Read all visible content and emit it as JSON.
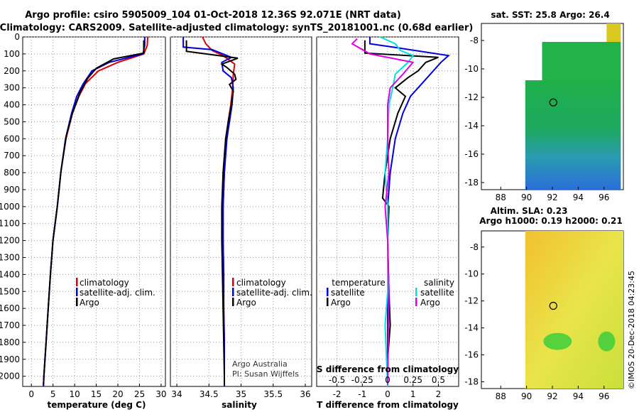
{
  "header": {
    "line1": "Argo profile: csiro 5905009_104 01-Oct-2018 12.36S 92.071E (NRT data)",
    "line2": "Climatology: CARS2009. Satellite-adjusted climatology: synTS_20181001.nc (0.68d earlier)"
  },
  "colors": {
    "climatology": "#e00000",
    "satellite": "#0000e0",
    "argo": "#000000",
    "sat_salinity": "#00e0e0",
    "clim_salinity": "#e000e0"
  },
  "chart_data": [
    {
      "type": "line",
      "xlabel": "temperature (deg C)",
      "ylabel": "",
      "xlim": [
        -2,
        31
      ],
      "ylim": [
        2060,
        0
      ],
      "xticks": [
        0,
        5,
        10,
        15,
        20,
        25,
        30
      ],
      "yticks": [
        0,
        100,
        200,
        300,
        400,
        500,
        600,
        700,
        800,
        900,
        1000,
        1100,
        1200,
        1300,
        1400,
        1500,
        1600,
        1700,
        1800,
        1900,
        2000
      ],
      "legend": {
        "items": [
          "climatology",
          "satellite-adj. clim.",
          "Argo"
        ],
        "placement": "bottom-center"
      },
      "series": [
        {
          "name": "climatology",
          "color": "#e00000",
          "points": [
            [
              26.9,
              0
            ],
            [
              26.8,
              50
            ],
            [
              26.0,
              100
            ],
            [
              20.0,
              150
            ],
            [
              15.5,
              200
            ],
            [
              12.5,
              275
            ],
            [
              11.0,
              350
            ],
            [
              9.5,
              450
            ],
            [
              8.0,
              600
            ],
            [
              6.8,
              800
            ],
            [
              6.0,
              1000
            ],
            [
              5.0,
              1200
            ],
            [
              4.4,
              1400
            ],
            [
              3.9,
              1600
            ],
            [
              3.4,
              1800
            ],
            [
              2.9,
              2000
            ],
            [
              2.8,
              2060
            ]
          ]
        },
        {
          "name": "satellite-adj. clim.",
          "color": "#0000e0",
          "points": [
            [
              26.2,
              0
            ],
            [
              26.2,
              50
            ],
            [
              25.8,
              100
            ],
            [
              18.0,
              150
            ],
            [
              14.0,
              200
            ],
            [
              12.0,
              275
            ],
            [
              10.5,
              350
            ],
            [
              9.3,
              450
            ],
            [
              7.9,
              600
            ],
            [
              6.8,
              800
            ],
            [
              6.0,
              1000
            ],
            [
              5.0,
              1200
            ],
            [
              4.4,
              1400
            ],
            [
              3.9,
              1600
            ],
            [
              3.4,
              1800
            ],
            [
              2.9,
              2000
            ],
            [
              2.8,
              2060
            ]
          ]
        },
        {
          "name": "Argo",
          "color": "#000000",
          "points": [
            [
              26.0,
              20
            ],
            [
              26.0,
              95
            ],
            [
              19.0,
              130
            ],
            [
              15.0,
              185
            ],
            [
              13.0,
              245
            ],
            [
              11.2,
              330
            ],
            [
              10.2,
              400
            ],
            [
              9.5,
              450
            ],
            [
              8.1,
              580
            ],
            [
              6.9,
              780
            ],
            [
              6.0,
              1000
            ],
            [
              5.0,
              1200
            ],
            [
              4.4,
              1400
            ],
            [
              3.9,
              1600
            ],
            [
              3.4,
              1800
            ],
            [
              2.9,
              2000
            ],
            [
              2.8,
              2050
            ]
          ]
        }
      ]
    },
    {
      "type": "line",
      "xlabel": "salinity",
      "ylabel": "",
      "xlim": [
        33.9,
        36.1
      ],
      "ylim": [
        2060,
        0
      ],
      "xticks": [
        34,
        34.5,
        35,
        35.5,
        36
      ],
      "legend": {
        "items": [
          "climatology",
          "satellite-adj. clim.",
          "Argo"
        ],
        "placement": "bottom-center"
      },
      "annotations": [
        "Argo Australia",
        "PI: Susan Wijffels"
      ],
      "series": [
        {
          "name": "climatology",
          "color": "#e00000",
          "points": [
            [
              34.4,
              0
            ],
            [
              34.45,
              40
            ],
            [
              34.55,
              80
            ],
            [
              34.72,
              110
            ],
            [
              34.9,
              160
            ],
            [
              34.88,
              220
            ],
            [
              34.87,
              300
            ],
            [
              34.84,
              400
            ],
            [
              34.8,
              500
            ],
            [
              34.77,
              600
            ],
            [
              34.74,
              800
            ],
            [
              34.72,
              1000
            ],
            [
              34.72,
              1200
            ],
            [
              34.73,
              1400
            ],
            [
              34.73,
              1600
            ],
            [
              34.74,
              1800
            ],
            [
              34.74,
              2000
            ],
            [
              34.74,
              2060
            ]
          ]
        },
        {
          "name": "satellite-adj. clim.",
          "color": "#0000e0",
          "points": [
            [
              34.1,
              0
            ],
            [
              34.1,
              60
            ],
            [
              34.55,
              75
            ],
            [
              34.85,
              120
            ],
            [
              34.7,
              150
            ],
            [
              34.72,
              200
            ],
            [
              34.85,
              240
            ],
            [
              34.88,
              300
            ],
            [
              34.86,
              400
            ],
            [
              34.82,
              500
            ],
            [
              34.78,
              600
            ],
            [
              34.74,
              800
            ],
            [
              34.72,
              1000
            ],
            [
              34.72,
              1200
            ],
            [
              34.73,
              1400
            ],
            [
              34.73,
              1600
            ],
            [
              34.74,
              1800
            ],
            [
              34.74,
              2000
            ],
            [
              34.74,
              2060
            ]
          ]
        },
        {
          "name": "Argo",
          "color": "#000000",
          "points": [
            [
              34.15,
              20
            ],
            [
              34.15,
              85
            ],
            [
              34.65,
              110
            ],
            [
              34.95,
              125
            ],
            [
              34.7,
              160
            ],
            [
              34.78,
              180
            ],
            [
              34.9,
              220
            ],
            [
              34.92,
              250
            ],
            [
              34.82,
              280
            ],
            [
              34.88,
              320
            ],
            [
              34.85,
              400
            ],
            [
              34.8,
              500
            ],
            [
              34.76,
              600
            ],
            [
              34.72,
              800
            ],
            [
              34.7,
              1000
            ],
            [
              34.7,
              1200
            ],
            [
              34.71,
              1400
            ],
            [
              34.72,
              1600
            ],
            [
              34.73,
              1800
            ],
            [
              34.74,
              2000
            ],
            [
              34.74,
              2050
            ]
          ]
        }
      ]
    },
    {
      "type": "line",
      "xlabel": "T difference from climatology",
      "ylabel": "",
      "xlim": [
        -2.8,
        2.8
      ],
      "ylim": [
        2060,
        0
      ],
      "xticks": [
        -2,
        -1,
        0,
        1,
        2
      ],
      "top_axis": {
        "label": "S difference from climatology",
        "ticks": [
          -0.5,
          -0.25,
          0,
          0.25,
          0.5
        ],
        "tick_labels": [
          "-0.5",
          "-0.25",
          "0",
          "0.25",
          "0.5"
        ]
      },
      "legend": {
        "temperature_heading": "temperature",
        "salinity_heading": "salinity",
        "temperature_items": [
          "satellite",
          "Argo"
        ],
        "salinity_items": [
          "satellite",
          "Argo"
        ],
        "placement": "bottom"
      },
      "series": [
        {
          "name": "temperature satellite",
          "color": "#0000e0",
          "points": [
            [
              -0.7,
              0
            ],
            [
              -0.7,
              40
            ],
            [
              0.2,
              60
            ],
            [
              2.4,
              110
            ],
            [
              2.1,
              150
            ],
            [
              1.5,
              250
            ],
            [
              0.9,
              350
            ],
            [
              0.6,
              450
            ],
            [
              0.3,
              600
            ],
            [
              0.1,
              800
            ],
            [
              0,
              1000
            ],
            [
              0,
              2060
            ]
          ]
        },
        {
          "name": "temperature Argo",
          "color": "#000000",
          "points": [
            [
              -0.9,
              20
            ],
            [
              -0.9,
              95
            ],
            [
              2.0,
              120
            ],
            [
              1.5,
              150
            ],
            [
              1.2,
              200
            ],
            [
              0.8,
              240
            ],
            [
              0.3,
              300
            ],
            [
              0.7,
              350
            ],
            [
              0.4,
              450
            ],
            [
              0.1,
              600
            ],
            [
              -0.1,
              800
            ],
            [
              -0.2,
              950
            ],
            [
              0.05,
              1000
            ],
            [
              0,
              1200
            ],
            [
              0.05,
              1500
            ],
            [
              0.1,
              1700
            ],
            [
              0,
              1900
            ],
            [
              0,
              2050
            ]
          ]
        },
        {
          "name": "salinity satellite",
          "color": "#00e0e0",
          "points": [
            [
              -0.3,
              0
            ],
            [
              0.3,
              40
            ],
            [
              0.5,
              80
            ],
            [
              1.0,
              110
            ],
            [
              0.8,
              150
            ],
            [
              0.3,
              220
            ],
            [
              0.2,
              300
            ],
            [
              0.05,
              400
            ],
            [
              0,
              600
            ],
            [
              -0.1,
              800
            ],
            [
              0,
              1000
            ],
            [
              0,
              1500
            ],
            [
              -0.1,
              1700
            ],
            [
              0,
              2060
            ]
          ]
        },
        {
          "name": "salinity Argo",
          "color": "#e000e0",
          "points": [
            [
              -1.2,
              10
            ],
            [
              -1.4,
              40
            ],
            [
              -0.7,
              100
            ],
            [
              1.0,
              150
            ],
            [
              0.6,
              220
            ],
            [
              0.1,
              300
            ],
            [
              0,
              400
            ],
            [
              0,
              500
            ],
            [
              0,
              600
            ],
            [
              0.05,
              800
            ],
            [
              -0.1,
              1000
            ],
            [
              0,
              1200
            ],
            [
              0.05,
              1500
            ],
            [
              0,
              2050
            ]
          ]
        }
      ]
    },
    {
      "type": "heatmap",
      "title": "sat. SST: 25.8  Argo: 26.4",
      "xlim": [
        86.5,
        97.5
      ],
      "ylim": [
        -18.5,
        -6.8
      ],
      "xticks": [
        88,
        90,
        92,
        94,
        96
      ],
      "yticks": [
        -8,
        -10,
        -12,
        -14,
        -16,
        -18
      ],
      "argo_position": [
        92.07,
        -12.36
      ]
    },
    {
      "type": "heatmap",
      "title": "Altim. SLA: 0.23",
      "subtitle": "Argo h1000: 0.19  h2000: 0.21",
      "xlim": [
        86.5,
        97.5
      ],
      "ylim": [
        -18.5,
        -6.8
      ],
      "xticks": [
        88,
        90,
        92,
        94,
        96
      ],
      "yticks": [
        -8,
        -10,
        -12,
        -14,
        -16,
        -18
      ],
      "argo_position": [
        92.07,
        -12.36
      ]
    }
  ],
  "footer": {
    "credit": "©IMOS 20-Dec-2018 04:23:45"
  }
}
